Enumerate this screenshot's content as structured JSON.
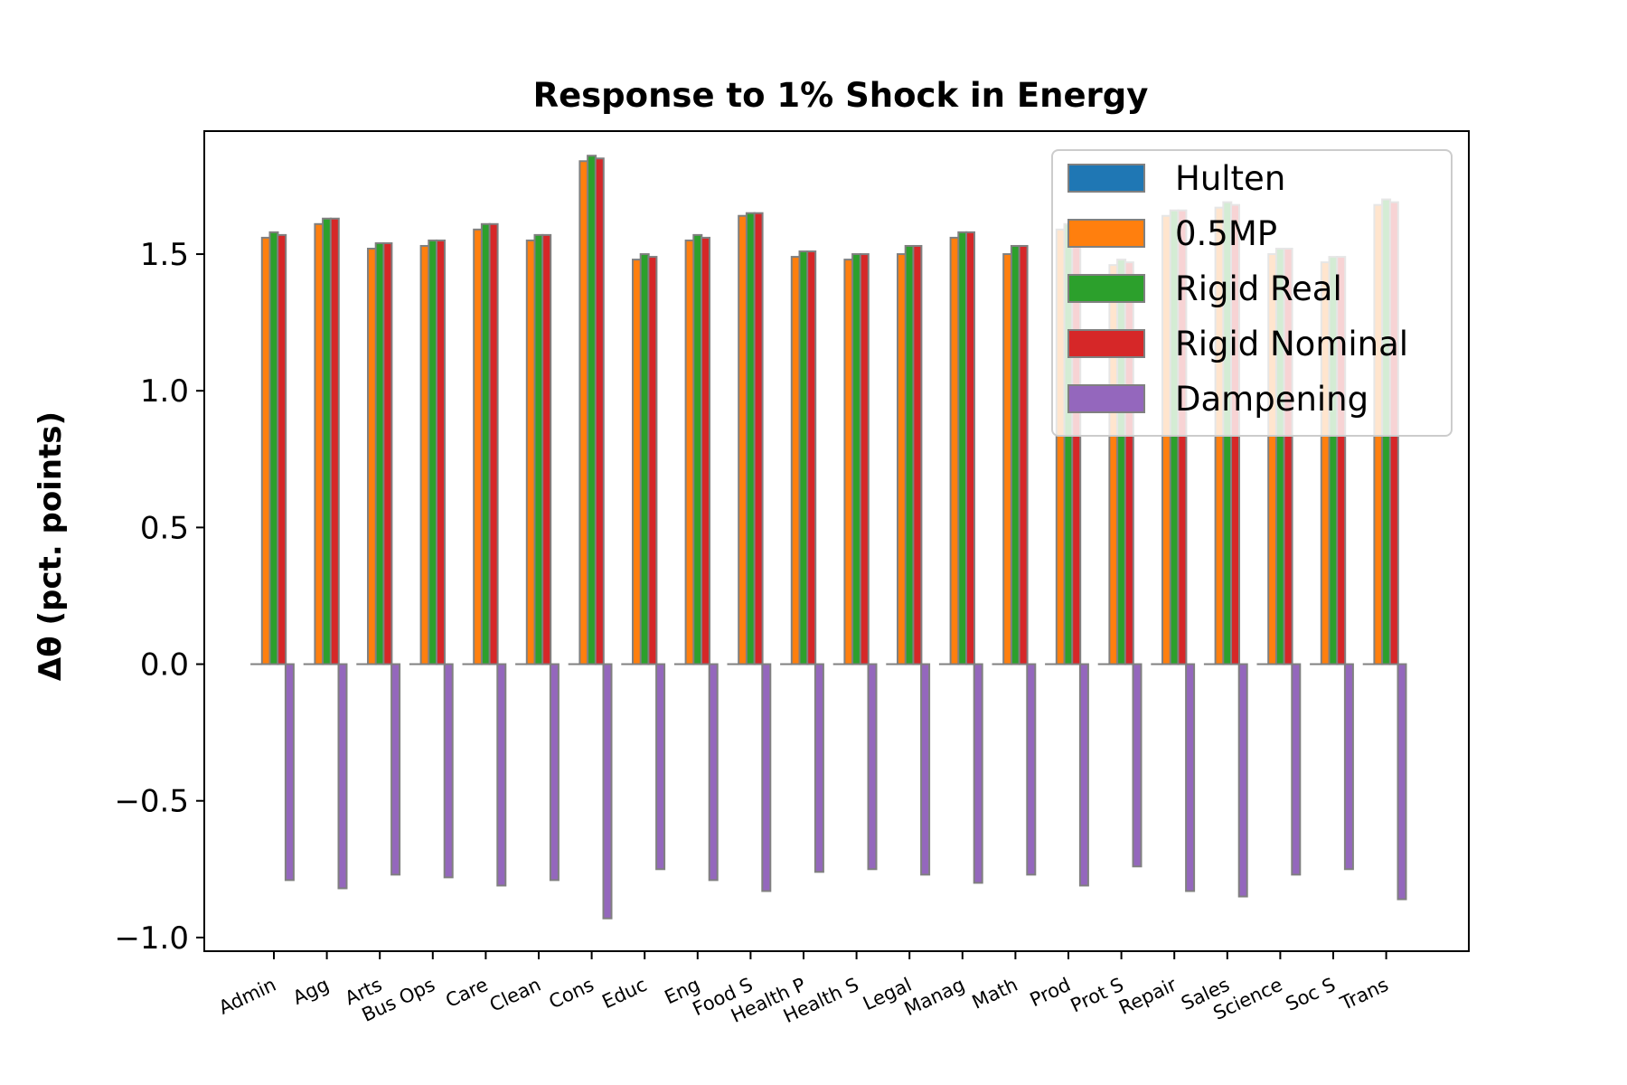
{
  "chart_data": {
    "type": "bar",
    "title": "Response to 1% Shock in Energy",
    "xlabel": "",
    "ylabel": "Δθ  (pct. points)",
    "ylim": [
      -1.05,
      1.95
    ],
    "yticks": [
      1.5,
      1.0,
      0.5,
      0.0,
      -0.5,
      -1.0
    ],
    "ytick_labels": [
      "1.5",
      "1.0",
      "0.5",
      "0.0",
      "−0.5",
      "−1.0"
    ],
    "grid": false,
    "legend_position": "top-right",
    "categories": [
      "Admin",
      "Agg",
      "Arts",
      "Bus Ops",
      "Care",
      "Clean",
      "Cons",
      "Educ",
      "Eng",
      "Food S",
      "Health P",
      "Health S",
      "Legal",
      "Manag",
      "Math",
      "Prod",
      "Prot S",
      "Repair",
      "Sales",
      "Science",
      "Soc S",
      "Trans"
    ],
    "series": [
      {
        "name": "Hulten",
        "color": "#1f77b4",
        "values": [
          0,
          0,
          0,
          0,
          0,
          0,
          0,
          0,
          0,
          0,
          0,
          0,
          0,
          0,
          0,
          0,
          0,
          0,
          0,
          0,
          0,
          0
        ]
      },
      {
        "name": "0.5MP",
        "color": "#ff7f0e",
        "values": [
          1.56,
          1.61,
          1.52,
          1.53,
          1.59,
          1.55,
          1.84,
          1.48,
          1.55,
          1.64,
          1.49,
          1.48,
          1.5,
          1.56,
          1.5,
          1.59,
          1.46,
          1.64,
          1.67,
          1.5,
          1.47,
          1.68
        ]
      },
      {
        "name": "Rigid Real",
        "color": "#2ca02c",
        "values": [
          1.58,
          1.63,
          1.54,
          1.55,
          1.61,
          1.57,
          1.86,
          1.5,
          1.57,
          1.65,
          1.51,
          1.5,
          1.53,
          1.58,
          1.53,
          1.61,
          1.48,
          1.66,
          1.69,
          1.52,
          1.49,
          1.7
        ]
      },
      {
        "name": "Rigid Nominal",
        "color": "#d62728",
        "values": [
          1.57,
          1.63,
          1.54,
          1.55,
          1.61,
          1.57,
          1.85,
          1.49,
          1.56,
          1.65,
          1.51,
          1.5,
          1.53,
          1.58,
          1.53,
          1.6,
          1.47,
          1.66,
          1.68,
          1.52,
          1.49,
          1.69
        ]
      },
      {
        "name": "Dampening",
        "color": "#9467bd",
        "values": [
          -0.79,
          -0.82,
          -0.77,
          -0.78,
          -0.81,
          -0.79,
          -0.93,
          -0.75,
          -0.79,
          -0.83,
          -0.76,
          -0.75,
          -0.77,
          -0.8,
          -0.77,
          -0.81,
          -0.74,
          -0.83,
          -0.85,
          -0.77,
          -0.75,
          -0.86
        ]
      }
    ]
  }
}
